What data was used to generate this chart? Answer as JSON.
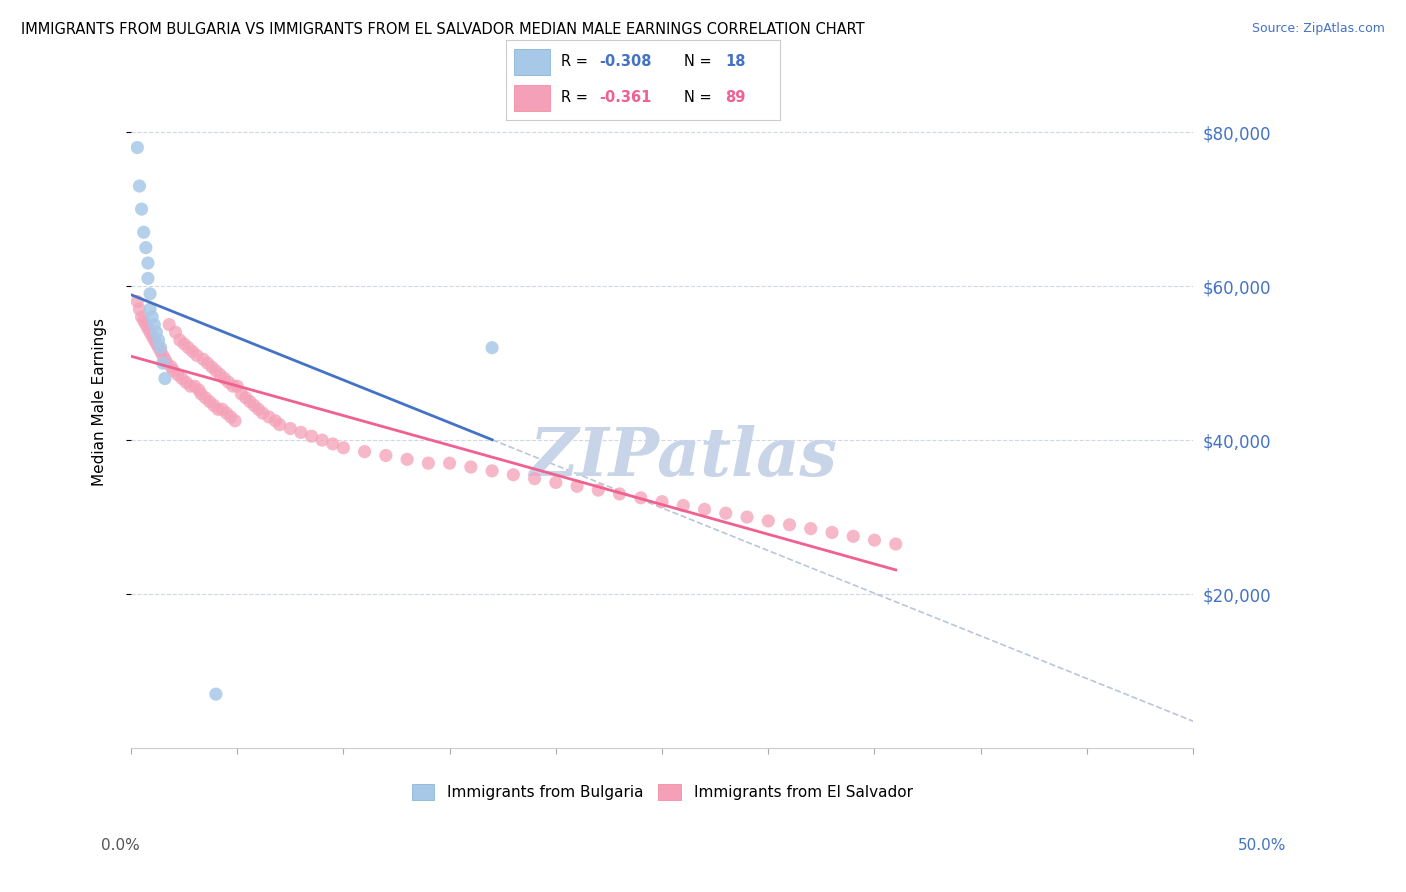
{
  "title": "IMMIGRANTS FROM BULGARIA VS IMMIGRANTS FROM EL SALVADOR MEDIAN MALE EARNINGS CORRELATION CHART",
  "source": "Source: ZipAtlas.com",
  "ylabel": "Median Male Earnings",
  "ytick_labels": [
    "$20,000",
    "$40,000",
    "$60,000",
    "$80,000"
  ],
  "ytick_values": [
    20000,
    40000,
    60000,
    80000
  ],
  "legend_label_bulgaria": "Immigrants from Bulgaria",
  "legend_label_elsalvador": "Immigrants from El Salvador",
  "color_bulgaria": "#a8c8e8",
  "color_elsalvador": "#f4a0b8",
  "color_line_bulgaria": "#4472c4",
  "color_line_elsalvador": "#f06090",
  "color_dashed_line": "#a8b8d0",
  "watermark": "ZIPatlas",
  "watermark_color": "#c8d4e8",
  "xlim": [
    0.0,
    0.5
  ],
  "ylim": [
    0,
    90000
  ],
  "R_bulgaria": -0.308,
  "N_bulgaria": 18,
  "R_elsalvador": -0.361,
  "N_elsalvador": 89,
  "bulgaria_x": [
    0.003,
    0.004,
    0.005,
    0.006,
    0.007,
    0.008,
    0.008,
    0.009,
    0.009,
    0.01,
    0.011,
    0.012,
    0.013,
    0.014,
    0.015,
    0.016,
    0.17,
    0.04
  ],
  "bulgaria_y": [
    78000,
    73000,
    70000,
    67000,
    65000,
    63000,
    61000,
    59000,
    57000,
    56000,
    55000,
    54000,
    53000,
    52000,
    50000,
    48000,
    52000,
    7000
  ],
  "elsalvador_x": [
    0.003,
    0.004,
    0.005,
    0.006,
    0.007,
    0.008,
    0.009,
    0.01,
    0.011,
    0.012,
    0.013,
    0.014,
    0.015,
    0.016,
    0.017,
    0.018,
    0.019,
    0.02,
    0.021,
    0.022,
    0.023,
    0.024,
    0.025,
    0.026,
    0.027,
    0.028,
    0.029,
    0.03,
    0.031,
    0.032,
    0.033,
    0.034,
    0.035,
    0.036,
    0.037,
    0.038,
    0.039,
    0.04,
    0.041,
    0.042,
    0.043,
    0.044,
    0.045,
    0.046,
    0.047,
    0.048,
    0.049,
    0.05,
    0.052,
    0.054,
    0.056,
    0.058,
    0.06,
    0.062,
    0.065,
    0.068,
    0.07,
    0.075,
    0.08,
    0.085,
    0.09,
    0.095,
    0.1,
    0.11,
    0.12,
    0.13,
    0.14,
    0.15,
    0.16,
    0.17,
    0.18,
    0.19,
    0.2,
    0.21,
    0.22,
    0.23,
    0.24,
    0.25,
    0.26,
    0.27,
    0.28,
    0.29,
    0.3,
    0.31,
    0.32,
    0.33,
    0.34,
    0.35,
    0.36
  ],
  "elsalvador_y": [
    58000,
    57000,
    56000,
    55500,
    55000,
    54500,
    54000,
    53500,
    53000,
    52500,
    52000,
    51500,
    51000,
    50500,
    50000,
    55000,
    49500,
    49000,
    54000,
    48500,
    53000,
    48000,
    52500,
    47500,
    52000,
    47000,
    51500,
    47000,
    51000,
    46500,
    46000,
    50500,
    45500,
    50000,
    45000,
    49500,
    44500,
    49000,
    44000,
    48500,
    44000,
    48000,
    43500,
    47500,
    43000,
    47000,
    42500,
    47000,
    46000,
    45500,
    45000,
    44500,
    44000,
    43500,
    43000,
    42500,
    42000,
    41500,
    41000,
    40500,
    40000,
    39500,
    39000,
    38500,
    38000,
    37500,
    37000,
    37000,
    36500,
    36000,
    35500,
    35000,
    34500,
    34000,
    33500,
    33000,
    32500,
    32000,
    31500,
    31000,
    30500,
    30000,
    29500,
    29000,
    28500,
    28000,
    27500,
    27000,
    26500
  ]
}
